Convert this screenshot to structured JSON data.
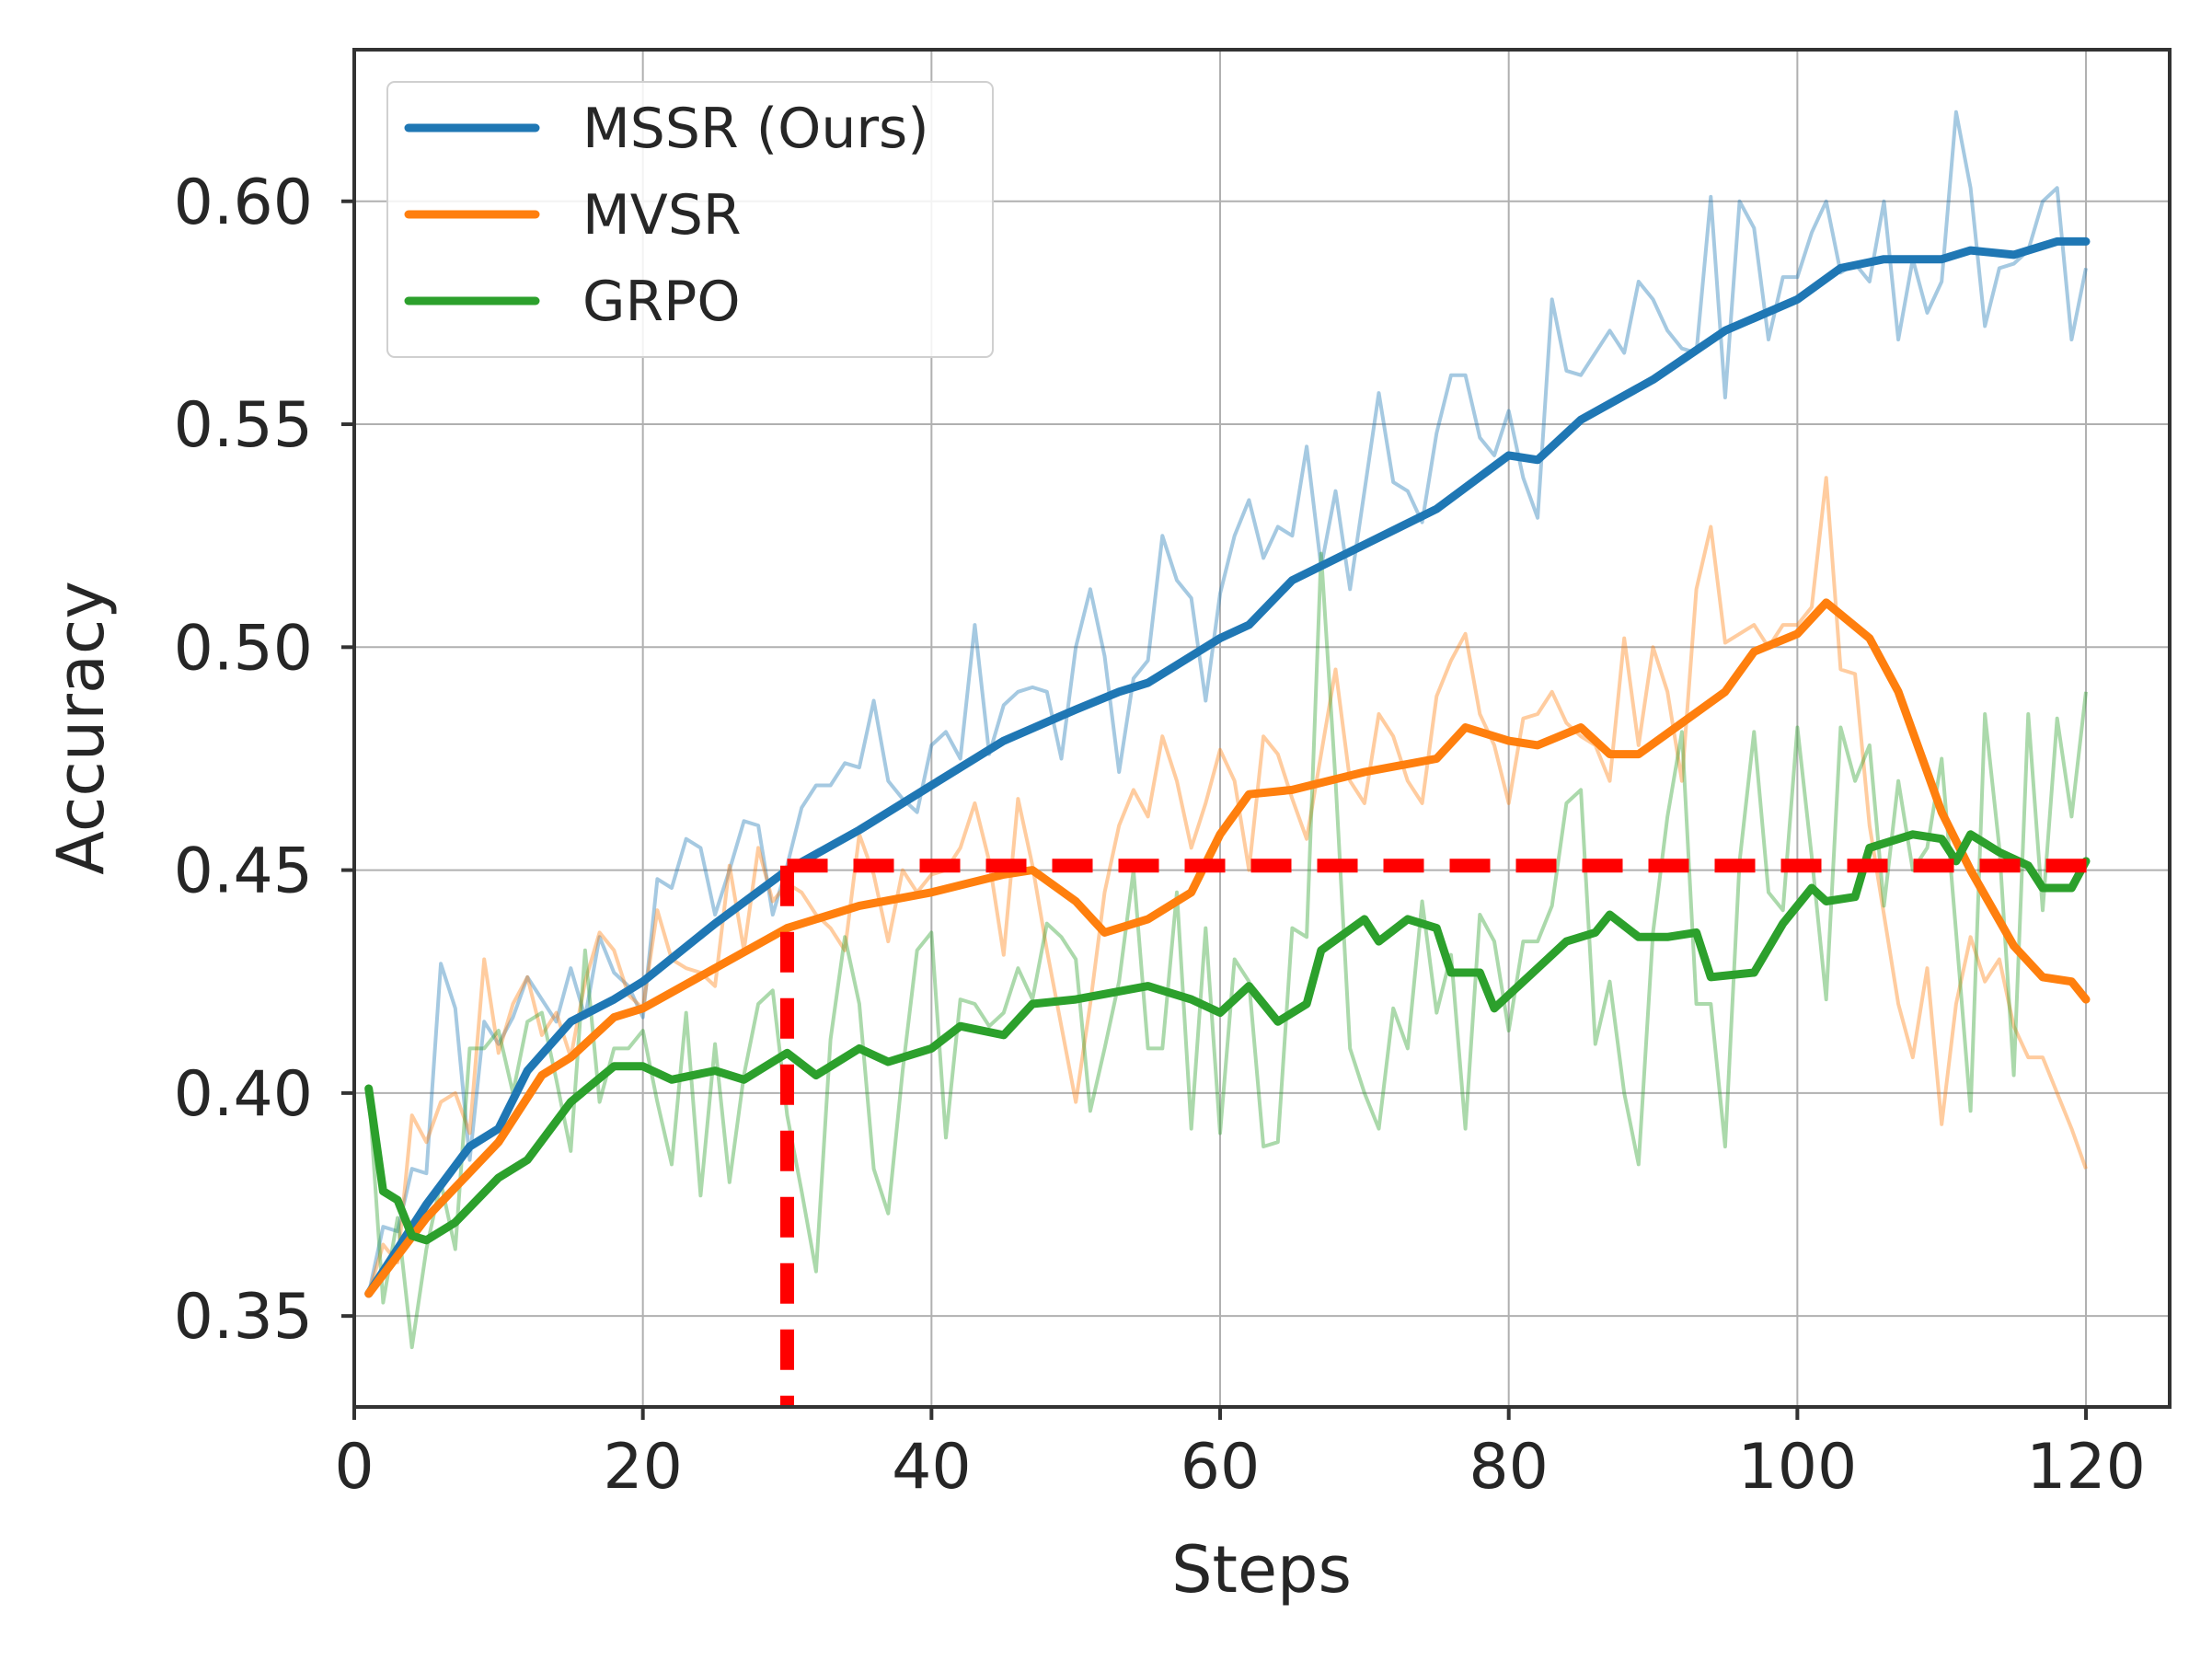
{
  "chart_data": {
    "type": "line",
    "title": "",
    "xlabel": "Steps",
    "ylabel": "Accuracy",
    "xlim": [
      0,
      125.8
    ],
    "ylim": [
      0.3296,
      0.634
    ],
    "xticks": [
      0,
      20,
      40,
      60,
      80,
      100,
      120
    ],
    "xtick_labels": [
      "0",
      "20",
      "40",
      "60",
      "80",
      "100",
      "120"
    ],
    "yticks": [
      0.35,
      0.4,
      0.45,
      0.5,
      0.55,
      0.6
    ],
    "ytick_labels": [
      "0.35",
      "0.40",
      "0.45",
      "0.50",
      "0.55",
      "0.60"
    ],
    "grid": true,
    "legend_position": "top-left",
    "series": [
      {
        "name": "MSSR (Ours)",
        "color": "#1f77b4",
        "raw": [
          0.355,
          0.37,
          0.369,
          0.383,
          0.382,
          0.429,
          0.419,
          0.385,
          0.416,
          0.411,
          0.417,
          0.426,
          0.421,
          0.416,
          0.428,
          0.417,
          0.435,
          0.427,
          0.424,
          0.417,
          0.448,
          0.446,
          0.457,
          0.455,
          0.44,
          0.45,
          0.461,
          0.46,
          0.44,
          0.451,
          0.464,
          0.469,
          0.469,
          0.474,
          0.473,
          0.488,
          0.47,
          0.466,
          0.463,
          0.478,
          0.481,
          0.475,
          0.505,
          0.476,
          0.487,
          0.49,
          0.491,
          0.49,
          0.475,
          0.5,
          0.513,
          0.498,
          0.472,
          0.493,
          0.497,
          0.525,
          0.515,
          0.511,
          0.488,
          0.512,
          0.525,
          0.533,
          0.52,
          0.527,
          0.525,
          0.545,
          0.518,
          0.535,
          0.513,
          0.535,
          0.557,
          0.537,
          0.535,
          0.528,
          0.548,
          0.561,
          0.561,
          0.547,
          0.543,
          0.553,
          0.538,
          0.529,
          0.578,
          0.562,
          0.561,
          0.566,
          0.571,
          0.566,
          0.582,
          0.578,
          0.571,
          0.567,
          0.566,
          0.601,
          0.556,
          0.6,
          0.594,
          0.569,
          0.583,
          0.583,
          0.593,
          0.6,
          0.584,
          0.586,
          0.582,
          0.6,
          0.569,
          0.587,
          0.575,
          0.582,
          0.62,
          0.603,
          0.572,
          0.585,
          0.586,
          0.589,
          0.6,
          0.603,
          0.569,
          0.585
        ],
        "smoothed": [
          [
            1,
            0.355
          ],
          [
            5,
            0.375
          ],
          [
            8,
            0.388
          ],
          [
            10,
            0.392
          ],
          [
            12,
            0.405
          ],
          [
            15,
            0.416
          ],
          [
            18,
            0.421
          ],
          [
            20,
            0.425
          ],
          [
            25,
            0.438
          ],
          [
            30,
            0.45
          ],
          [
            35,
            0.459
          ],
          [
            40,
            0.469
          ],
          [
            45,
            0.479
          ],
          [
            50,
            0.486
          ],
          [
            53,
            0.49
          ],
          [
            55,
            0.492
          ],
          [
            60,
            0.502
          ],
          [
            62,
            0.505
          ],
          [
            65,
            0.515
          ],
          [
            70,
            0.523
          ],
          [
            75,
            0.531
          ],
          [
            80,
            0.543
          ],
          [
            82,
            0.542
          ],
          [
            85,
            0.551
          ],
          [
            90,
            0.56
          ],
          [
            95,
            0.571
          ],
          [
            100,
            0.578
          ],
          [
            103,
            0.585
          ],
          [
            106,
            0.587
          ],
          [
            110,
            0.587
          ],
          [
            112,
            0.589
          ],
          [
            115,
            0.588
          ],
          [
            118,
            0.591
          ],
          [
            120,
            0.591
          ]
        ]
      },
      {
        "name": "MVSR",
        "color": "#ff7f0e",
        "raw": [
          0.355,
          0.366,
          0.362,
          0.395,
          0.389,
          0.398,
          0.4,
          0.391,
          0.43,
          0.409,
          0.42,
          0.426,
          0.413,
          0.418,
          0.408,
          0.425,
          0.436,
          0.432,
          0.422,
          0.419,
          0.441,
          0.43,
          0.428,
          0.427,
          0.424,
          0.451,
          0.432,
          0.455,
          0.443,
          0.447,
          0.445,
          0.44,
          0.437,
          0.432,
          0.458,
          0.449,
          0.434,
          0.45,
          0.445,
          0.449,
          0.45,
          0.455,
          0.465,
          0.452,
          0.431,
          0.466,
          0.451,
          0.432,
          0.415,
          0.398,
          0.42,
          0.445,
          0.46,
          0.468,
          0.462,
          0.48,
          0.47,
          0.455,
          0.465,
          0.477,
          0.47,
          0.45,
          0.48,
          0.476,
          0.466,
          0.457,
          0.476,
          0.495,
          0.47,
          0.465,
          0.485,
          0.48,
          0.47,
          0.465,
          0.489,
          0.497,
          0.503,
          0.485,
          0.478,
          0.465,
          0.484,
          0.485,
          0.49,
          0.483,
          0.48,
          0.478,
          0.47,
          0.502,
          0.478,
          0.5,
          0.49,
          0.47,
          0.513,
          0.527,
          0.501,
          0.503,
          0.505,
          0.5,
          0.505,
          0.505,
          0.509,
          0.538,
          0.495,
          0.494,
          0.46,
          0.44,
          0.42,
          0.408,
          0.428,
          0.393,
          0.42,
          0.435,
          0.425,
          0.43,
          0.415,
          0.408,
          0.408,
          0.4,
          0.392,
          0.383
        ],
        "smoothed": [
          [
            1,
            0.355
          ],
          [
            5,
            0.372
          ],
          [
            10,
            0.389
          ],
          [
            13,
            0.404
          ],
          [
            15,
            0.408
          ],
          [
            18,
            0.417
          ],
          [
            20,
            0.419
          ],
          [
            25,
            0.428
          ],
          [
            30,
            0.437
          ],
          [
            35,
            0.442
          ],
          [
            40,
            0.445
          ],
          [
            45,
            0.449
          ],
          [
            47,
            0.45
          ],
          [
            50,
            0.443
          ],
          [
            52,
            0.436
          ],
          [
            55,
            0.439
          ],
          [
            58,
            0.445
          ],
          [
            60,
            0.458
          ],
          [
            62,
            0.467
          ],
          [
            65,
            0.468
          ],
          [
            70,
            0.472
          ],
          [
            75,
            0.475
          ],
          [
            77,
            0.482
          ],
          [
            80,
            0.479
          ],
          [
            82,
            0.478
          ],
          [
            85,
            0.482
          ],
          [
            87,
            0.476
          ],
          [
            89,
            0.476
          ],
          [
            92,
            0.483
          ],
          [
            95,
            0.49
          ],
          [
            97,
            0.499
          ],
          [
            100,
            0.503
          ],
          [
            102,
            0.51
          ],
          [
            105,
            0.502
          ],
          [
            107,
            0.49
          ],
          [
            110,
            0.463
          ],
          [
            112,
            0.45
          ],
          [
            115,
            0.433
          ],
          [
            117,
            0.426
          ],
          [
            119,
            0.425
          ],
          [
            120,
            0.421
          ]
        ]
      },
      {
        "name": "GRPO",
        "color": "#2ca02c",
        "raw": [
          0.401,
          0.353,
          0.372,
          0.343,
          0.365,
          0.38,
          0.365,
          0.41,
          0.41,
          0.414,
          0.4,
          0.416,
          0.418,
          0.403,
          0.387,
          0.432,
          0.398,
          0.41,
          0.41,
          0.414,
          0.398,
          0.384,
          0.418,
          0.377,
          0.411,
          0.38,
          0.404,
          0.42,
          0.423,
          0.395,
          0.378,
          0.36,
          0.412,
          0.435,
          0.42,
          0.383,
          0.373,
          0.405,
          0.432,
          0.436,
          0.39,
          0.421,
          0.42,
          0.415,
          0.418,
          0.428,
          0.421,
          0.438,
          0.435,
          0.43,
          0.396,
          0.41,
          0.425,
          0.45,
          0.41,
          0.41,
          0.445,
          0.392,
          0.437,
          0.391,
          0.43,
          0.425,
          0.388,
          0.389,
          0.437,
          0.435,
          0.521,
          0.47,
          0.41,
          0.4,
          0.392,
          0.419,
          0.41,
          0.443,
          0.418,
          0.431,
          0.392,
          0.44,
          0.434,
          0.414,
          0.434,
          0.434,
          0.442,
          0.465,
          0.468,
          0.411,
          0.425,
          0.4,
          0.384,
          0.436,
          0.462,
          0.481,
          0.42,
          0.42,
          0.388,
          0.452,
          0.481,
          0.445,
          0.441,
          0.482,
          0.453,
          0.421,
          0.482,
          0.47,
          0.478,
          0.442,
          0.47,
          0.45,
          0.455,
          0.475,
          0.436,
          0.396,
          0.485,
          0.455,
          0.404,
          0.485,
          0.441,
          0.484,
          0.462,
          0.49
        ],
        "smoothed": [
          [
            1,
            0.401
          ],
          [
            2,
            0.378
          ],
          [
            3,
            0.376
          ],
          [
            4,
            0.368
          ],
          [
            5,
            0.367
          ],
          [
            7,
            0.371
          ],
          [
            10,
            0.381
          ],
          [
            12,
            0.385
          ],
          [
            15,
            0.398
          ],
          [
            18,
            0.406
          ],
          [
            20,
            0.406
          ],
          [
            22,
            0.403
          ],
          [
            25,
            0.405
          ],
          [
            27,
            0.403
          ],
          [
            30,
            0.409
          ],
          [
            32,
            0.404
          ],
          [
            35,
            0.41
          ],
          [
            37,
            0.407
          ],
          [
            40,
            0.41
          ],
          [
            42,
            0.415
          ],
          [
            45,
            0.413
          ],
          [
            47,
            0.42
          ],
          [
            50,
            0.421
          ],
          [
            55,
            0.424
          ],
          [
            58,
            0.421
          ],
          [
            60,
            0.418
          ],
          [
            62,
            0.424
          ],
          [
            64,
            0.416
          ],
          [
            66,
            0.42
          ],
          [
            67,
            0.432
          ],
          [
            70,
            0.439
          ],
          [
            71,
            0.434
          ],
          [
            73,
            0.439
          ],
          [
            75,
            0.437
          ],
          [
            76,
            0.427
          ],
          [
            78,
            0.427
          ],
          [
            79,
            0.419
          ],
          [
            82,
            0.428
          ],
          [
            84,
            0.434
          ],
          [
            86,
            0.436
          ],
          [
            87,
            0.44
          ],
          [
            89,
            0.435
          ],
          [
            91,
            0.435
          ],
          [
            93,
            0.436
          ],
          [
            94,
            0.426
          ],
          [
            97,
            0.427
          ],
          [
            99,
            0.438
          ],
          [
            101,
            0.446
          ],
          [
            102,
            0.443
          ],
          [
            104,
            0.444
          ],
          [
            105,
            0.455
          ],
          [
            107,
            0.457
          ],
          [
            108,
            0.458
          ],
          [
            110,
            0.457
          ],
          [
            111,
            0.452
          ],
          [
            112,
            0.458
          ],
          [
            114,
            0.454
          ],
          [
            116,
            0.451
          ],
          [
            117,
            0.446
          ],
          [
            119,
            0.446
          ],
          [
            120,
            0.452
          ]
        ]
      }
    ],
    "reference_lines": {
      "color": "#ff0000",
      "horizontal": {
        "y": 0.451,
        "x_from": 30,
        "x_to": 120.5
      },
      "vertical": {
        "x": 30,
        "y_to": 0.451
      }
    }
  }
}
